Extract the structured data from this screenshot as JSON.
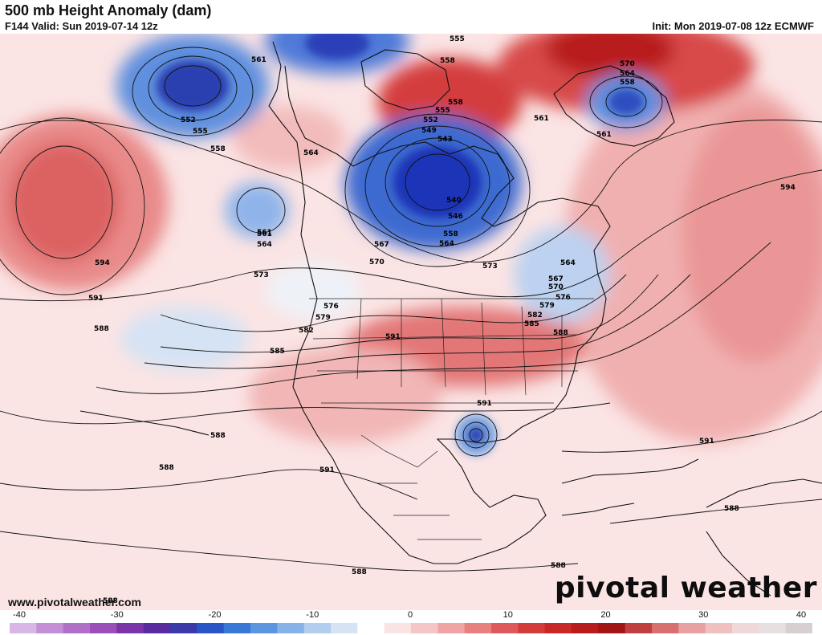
{
  "header": {
    "title": "500 mb Height Anomaly (dam)",
    "valid": "F144 Valid: Sun 2019-07-14 12z",
    "init": "Init: Mon 2019-07-08 12z ECMWF"
  },
  "footer": {
    "url": "www.pivotalweather.com",
    "brand": "pivotal weather"
  },
  "colorbar": {
    "ticks": [
      "-40",
      "-30",
      "-20",
      "-10",
      "0",
      "10",
      "20",
      "30",
      "40"
    ],
    "min": -40,
    "max": 40,
    "colors": [
      "#d8b7e6",
      "#c48fd6",
      "#b070c8",
      "#9b4fb8",
      "#7a35a8",
      "#5a2b9e",
      "#3b3aa8",
      "#2a55c8",
      "#3a78d8",
      "#5c96e0",
      "#86b2e8",
      "#b2cdee",
      "#d6e3f4",
      "#ffffff",
      "#fbe3e3",
      "#f6c6c6",
      "#f0a5a5",
      "#e88080",
      "#de5a5a",
      "#d43c3c",
      "#c82828",
      "#b81c1c",
      "#a31414",
      "#c04040",
      "#d87070",
      "#e8a0a0",
      "#f0c0c0",
      "#f0d8d8",
      "#e8e0e0",
      "#d8d0d0"
    ]
  },
  "contour_labels": [
    {
      "text": "561"
    },
    {
      "text": "552"
    },
    {
      "text": "555"
    },
    {
      "text": "558"
    },
    {
      "text": "564"
    },
    {
      "text": "555"
    },
    {
      "text": "558"
    },
    {
      "text": "558"
    },
    {
      "text": "555"
    },
    {
      "text": "552"
    },
    {
      "text": "549"
    },
    {
      "text": "543"
    },
    {
      "text": "540"
    },
    {
      "text": "546"
    },
    {
      "text": "558"
    },
    {
      "text": "564"
    },
    {
      "text": "567"
    },
    {
      "text": "570"
    },
    {
      "text": "573"
    },
    {
      "text": "561"
    },
    {
      "text": "570"
    },
    {
      "text": "564"
    },
    {
      "text": "558"
    },
    {
      "text": "561"
    },
    {
      "text": "561"
    },
    {
      "text": "594"
    },
    {
      "text": "561"
    },
    {
      "text": "564"
    },
    {
      "text": "573"
    },
    {
      "text": "594"
    },
    {
      "text": "591"
    },
    {
      "text": "588"
    },
    {
      "text": "576"
    },
    {
      "text": "579"
    },
    {
      "text": "582"
    },
    {
      "text": "585"
    },
    {
      "text": "591"
    },
    {
      "text": "564"
    },
    {
      "text": "567"
    },
    {
      "text": "570"
    },
    {
      "text": "576"
    },
    {
      "text": "579"
    },
    {
      "text": "582"
    },
    {
      "text": "585"
    },
    {
      "text": "588"
    },
    {
      "text": "591"
    },
    {
      "text": "588"
    },
    {
      "text": "588"
    },
    {
      "text": "591"
    },
    {
      "text": "591"
    },
    {
      "text": "588"
    },
    {
      "text": "588"
    },
    {
      "text": "588"
    },
    {
      "text": "588"
    }
  ]
}
